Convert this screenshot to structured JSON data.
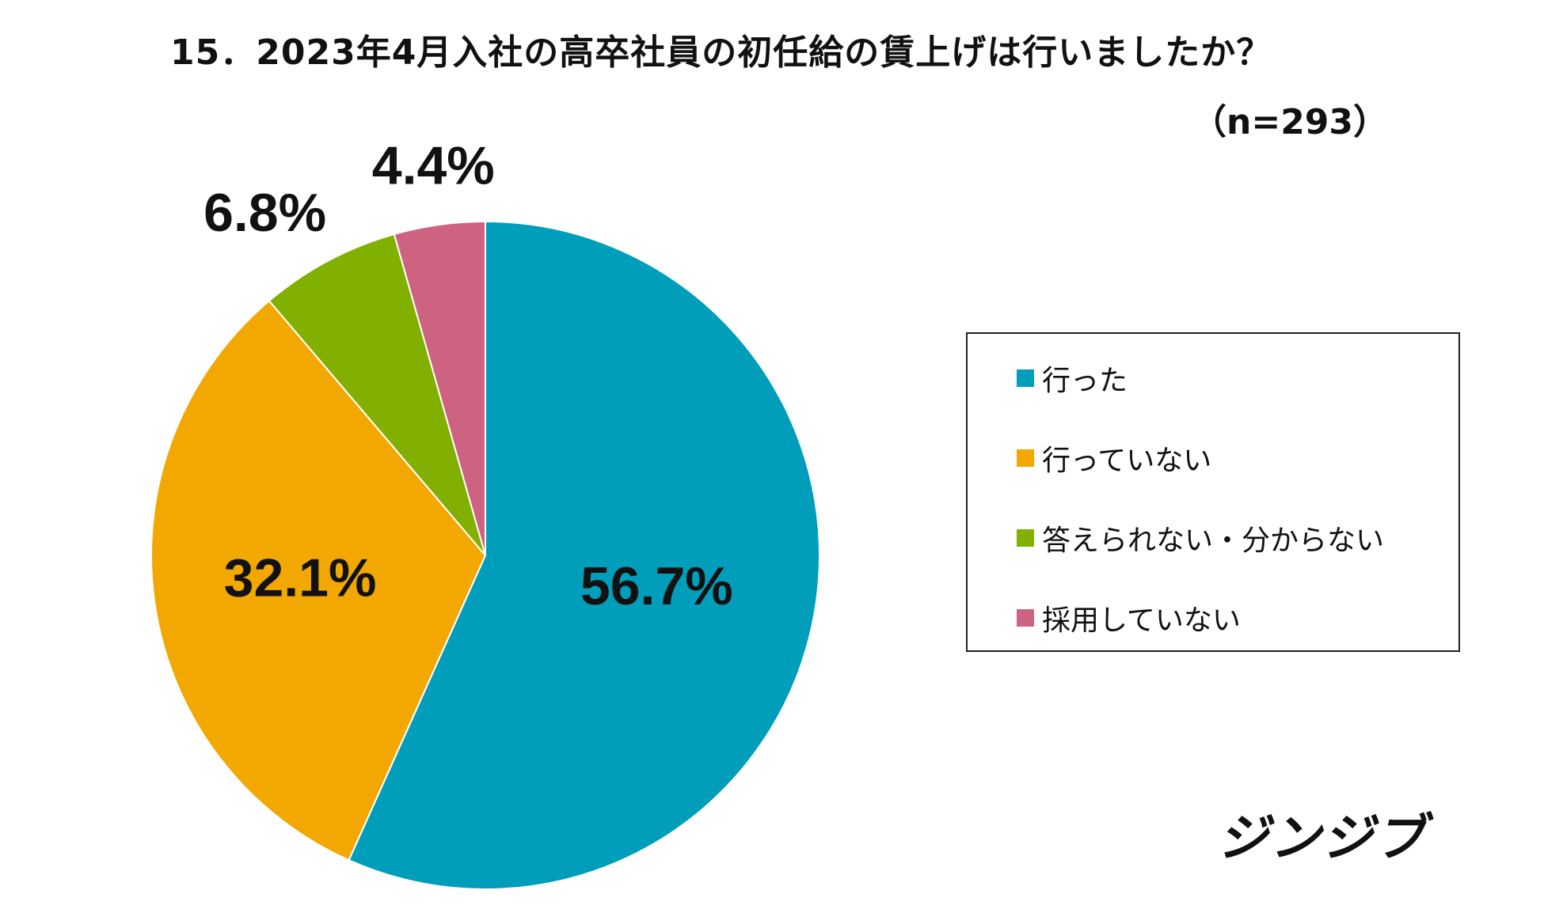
{
  "title": "15．2023年4月入社の高卒社員の初任給の賃上げは行いましたか？",
  "sample_size": "（n=293）",
  "brand": "ジンジブ",
  "chart_data": {
    "type": "pie",
    "title": "15．2023年4月入社の高卒社員の初任給の賃上げは行いましたか？",
    "subtitle": "（n=293）",
    "start_angle": "12 o'clock, clockwise",
    "legend_position": "right",
    "slices": [
      {
        "label": "行った",
        "value": 56.7,
        "display": "56.7%",
        "color": "#019EBB"
      },
      {
        "label": "行っていない",
        "value": 32.1,
        "display": "32.1%",
        "color": "#F2A800"
      },
      {
        "label": "答えられない・分からない",
        "value": 6.8,
        "display": "6.8%",
        "color": "#82B000"
      },
      {
        "label": "採用していない",
        "value": 4.4,
        "display": "4.4%",
        "color": "#CD6380"
      }
    ]
  }
}
